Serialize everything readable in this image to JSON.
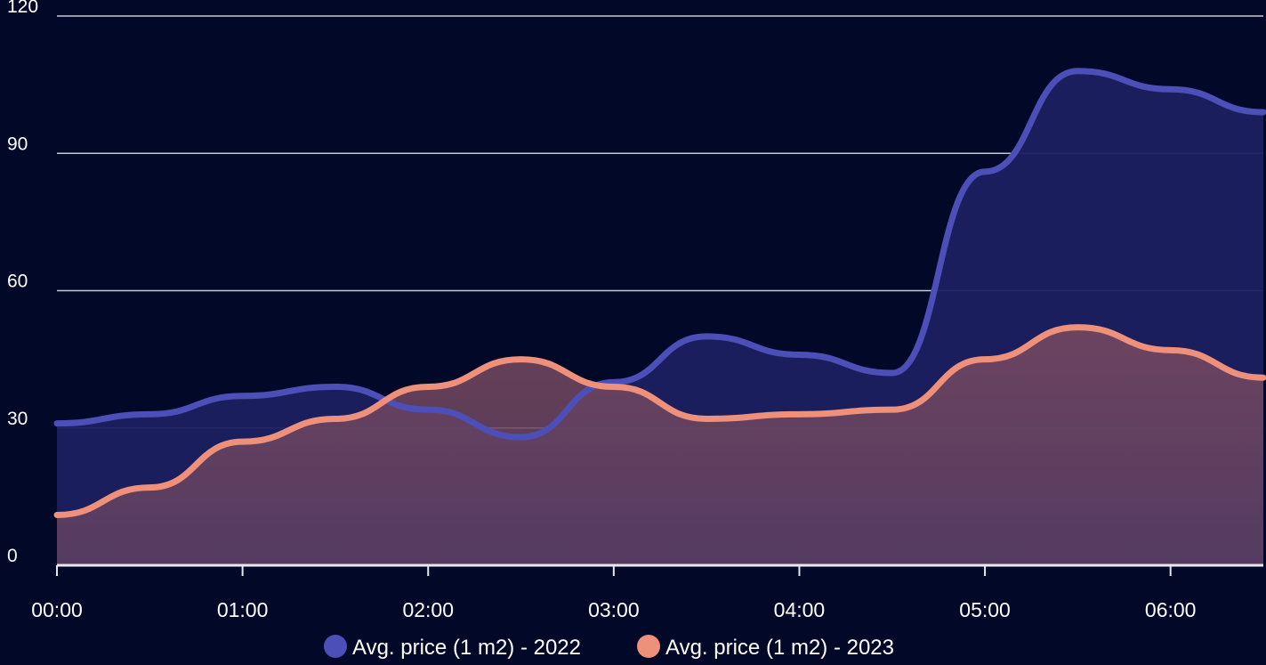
{
  "chart_data": {
    "type": "area",
    "title": "",
    "xlabel": "",
    "ylabel": "",
    "ylim": [
      0,
      120
    ],
    "yticks": [
      0,
      30,
      60,
      90,
      120
    ],
    "xlim": [
      0,
      6.5
    ],
    "xticks": [
      "00:00",
      "01:00",
      "02:00",
      "03:00",
      "04:00",
      "05:00",
      "06:00"
    ],
    "grid": true,
    "legend_position": "bottom-center",
    "series": [
      {
        "name": "Avg. price (1 m2) - 2022",
        "color": "#4d4fb8",
        "fill": "#1c2161",
        "points": [
          {
            "t": 0.0,
            "y": 31
          },
          {
            "t": 0.5,
            "y": 33
          },
          {
            "t": 1.0,
            "y": 37
          },
          {
            "t": 1.5,
            "y": 39
          },
          {
            "t": 2.0,
            "y": 34
          },
          {
            "t": 2.5,
            "y": 28
          },
          {
            "t": 3.0,
            "y": 40
          },
          {
            "t": 3.5,
            "y": 50
          },
          {
            "t": 4.0,
            "y": 46
          },
          {
            "t": 4.5,
            "y": 42
          },
          {
            "t": 5.0,
            "y": 86
          },
          {
            "t": 5.5,
            "y": 108
          },
          {
            "t": 6.0,
            "y": 104
          },
          {
            "t": 6.5,
            "y": 99
          }
        ]
      },
      {
        "name": "Avg. price (1 m2) - 2023",
        "color": "#ef917a",
        "fill": "#74475c",
        "points": [
          {
            "t": 0.0,
            "y": 11
          },
          {
            "t": 0.5,
            "y": 17
          },
          {
            "t": 1.0,
            "y": 27
          },
          {
            "t": 1.5,
            "y": 32
          },
          {
            "t": 2.0,
            "y": 39
          },
          {
            "t": 2.5,
            "y": 45
          },
          {
            "t": 3.0,
            "y": 39
          },
          {
            "t": 3.5,
            "y": 32
          },
          {
            "t": 4.0,
            "y": 33
          },
          {
            "t": 4.5,
            "y": 34
          },
          {
            "t": 5.0,
            "y": 45
          },
          {
            "t": 5.5,
            "y": 52
          },
          {
            "t": 6.0,
            "y": 47
          },
          {
            "t": 6.5,
            "y": 41
          }
        ]
      }
    ]
  }
}
